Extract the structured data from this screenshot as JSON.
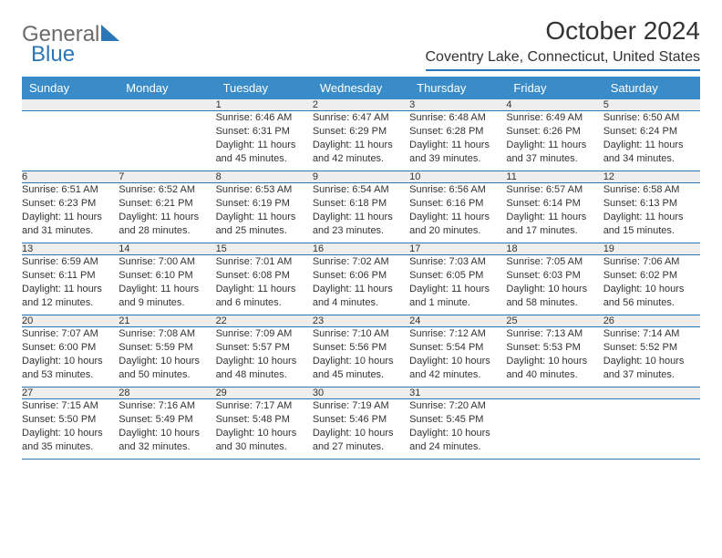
{
  "logo": {
    "text1": "General",
    "text2": "Blue"
  },
  "title": "October 2024",
  "location": "Coventry Lake, Connecticut, United States",
  "colors": {
    "header_bg": "#3a8cc9",
    "header_text": "#ffffff",
    "accent": "#2a76b6",
    "daynum_bg": "#eeeeee",
    "text": "#333333"
  },
  "weekdays": [
    "Sunday",
    "Monday",
    "Tuesday",
    "Wednesday",
    "Thursday",
    "Friday",
    "Saturday"
  ],
  "weeks": [
    [
      null,
      null,
      {
        "n": "1",
        "sr": "6:46 AM",
        "ss": "6:31 PM",
        "dl": "11 hours and 45 minutes."
      },
      {
        "n": "2",
        "sr": "6:47 AM",
        "ss": "6:29 PM",
        "dl": "11 hours and 42 minutes."
      },
      {
        "n": "3",
        "sr": "6:48 AM",
        "ss": "6:28 PM",
        "dl": "11 hours and 39 minutes."
      },
      {
        "n": "4",
        "sr": "6:49 AM",
        "ss": "6:26 PM",
        "dl": "11 hours and 37 minutes."
      },
      {
        "n": "5",
        "sr": "6:50 AM",
        "ss": "6:24 PM",
        "dl": "11 hours and 34 minutes."
      }
    ],
    [
      {
        "n": "6",
        "sr": "6:51 AM",
        "ss": "6:23 PM",
        "dl": "11 hours and 31 minutes."
      },
      {
        "n": "7",
        "sr": "6:52 AM",
        "ss": "6:21 PM",
        "dl": "11 hours and 28 minutes."
      },
      {
        "n": "8",
        "sr": "6:53 AM",
        "ss": "6:19 PM",
        "dl": "11 hours and 25 minutes."
      },
      {
        "n": "9",
        "sr": "6:54 AM",
        "ss": "6:18 PM",
        "dl": "11 hours and 23 minutes."
      },
      {
        "n": "10",
        "sr": "6:56 AM",
        "ss": "6:16 PM",
        "dl": "11 hours and 20 minutes."
      },
      {
        "n": "11",
        "sr": "6:57 AM",
        "ss": "6:14 PM",
        "dl": "11 hours and 17 minutes."
      },
      {
        "n": "12",
        "sr": "6:58 AM",
        "ss": "6:13 PM",
        "dl": "11 hours and 15 minutes."
      }
    ],
    [
      {
        "n": "13",
        "sr": "6:59 AM",
        "ss": "6:11 PM",
        "dl": "11 hours and 12 minutes."
      },
      {
        "n": "14",
        "sr": "7:00 AM",
        "ss": "6:10 PM",
        "dl": "11 hours and 9 minutes."
      },
      {
        "n": "15",
        "sr": "7:01 AM",
        "ss": "6:08 PM",
        "dl": "11 hours and 6 minutes."
      },
      {
        "n": "16",
        "sr": "7:02 AM",
        "ss": "6:06 PM",
        "dl": "11 hours and 4 minutes."
      },
      {
        "n": "17",
        "sr": "7:03 AM",
        "ss": "6:05 PM",
        "dl": "11 hours and 1 minute."
      },
      {
        "n": "18",
        "sr": "7:05 AM",
        "ss": "6:03 PM",
        "dl": "10 hours and 58 minutes."
      },
      {
        "n": "19",
        "sr": "7:06 AM",
        "ss": "6:02 PM",
        "dl": "10 hours and 56 minutes."
      }
    ],
    [
      {
        "n": "20",
        "sr": "7:07 AM",
        "ss": "6:00 PM",
        "dl": "10 hours and 53 minutes."
      },
      {
        "n": "21",
        "sr": "7:08 AM",
        "ss": "5:59 PM",
        "dl": "10 hours and 50 minutes."
      },
      {
        "n": "22",
        "sr": "7:09 AM",
        "ss": "5:57 PM",
        "dl": "10 hours and 48 minutes."
      },
      {
        "n": "23",
        "sr": "7:10 AM",
        "ss": "5:56 PM",
        "dl": "10 hours and 45 minutes."
      },
      {
        "n": "24",
        "sr": "7:12 AM",
        "ss": "5:54 PM",
        "dl": "10 hours and 42 minutes."
      },
      {
        "n": "25",
        "sr": "7:13 AM",
        "ss": "5:53 PM",
        "dl": "10 hours and 40 minutes."
      },
      {
        "n": "26",
        "sr": "7:14 AM",
        "ss": "5:52 PM",
        "dl": "10 hours and 37 minutes."
      }
    ],
    [
      {
        "n": "27",
        "sr": "7:15 AM",
        "ss": "5:50 PM",
        "dl": "10 hours and 35 minutes."
      },
      {
        "n": "28",
        "sr": "7:16 AM",
        "ss": "5:49 PM",
        "dl": "10 hours and 32 minutes."
      },
      {
        "n": "29",
        "sr": "7:17 AM",
        "ss": "5:48 PM",
        "dl": "10 hours and 30 minutes."
      },
      {
        "n": "30",
        "sr": "7:19 AM",
        "ss": "5:46 PM",
        "dl": "10 hours and 27 minutes."
      },
      {
        "n": "31",
        "sr": "7:20 AM",
        "ss": "5:45 PM",
        "dl": "10 hours and 24 minutes."
      },
      null,
      null
    ]
  ],
  "labels": {
    "sunrise": "Sunrise:",
    "sunset": "Sunset:",
    "daylight": "Daylight:"
  }
}
